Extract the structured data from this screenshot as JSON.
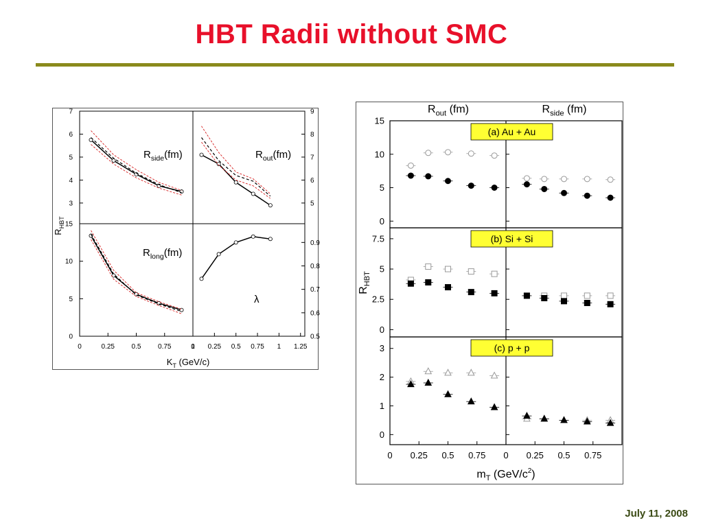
{
  "slide": {
    "title": "HBT Radii without SMC",
    "date": "July 11, 2008"
  },
  "chart_data": [
    {
      "type": "line",
      "name": "left-figure",
      "xlabel": "K_T (GeV/c)",
      "ylabel": "R_HBT",
      "panels": [
        {
          "id": "side",
          "label_main": "R",
          "label_sub": "side",
          "label_unit": "(fm)",
          "xlim": [
            0,
            1
          ],
          "ylim": [
            2.1,
            7
          ],
          "yticks": [
            3,
            4,
            5,
            6,
            7
          ],
          "series": [
            {
              "style": "solid",
              "x": [
                0.1,
                0.3,
                0.5,
                0.7,
                0.9
              ],
              "y": [
                5.75,
                4.85,
                4.25,
                3.75,
                3.5
              ]
            },
            {
              "style": "dashed",
              "x": [
                0.1,
                0.3,
                0.5,
                0.7,
                0.9
              ],
              "y": [
                5.85,
                4.95,
                4.3,
                3.8,
                3.45
              ]
            },
            {
              "style": "band-upper",
              "x": [
                0.1,
                0.3,
                0.5,
                0.7,
                0.9
              ],
              "y": [
                6.15,
                5.1,
                4.45,
                3.9,
                3.55
              ]
            },
            {
              "style": "band-lower",
              "x": [
                0.1,
                0.3,
                0.5,
                0.7,
                0.9
              ],
              "y": [
                5.55,
                4.7,
                4.1,
                3.65,
                3.35
              ]
            }
          ]
        },
        {
          "id": "out",
          "label_main": "R",
          "label_sub": "out",
          "label_unit": "(fm)",
          "xlim": [
            0,
            1.3
          ],
          "ylim": [
            4.1,
            9
          ],
          "yticks": [
            5,
            6,
            7,
            8,
            9
          ],
          "series": [
            {
              "style": "solid",
              "x": [
                0.1,
                0.3,
                0.5,
                0.7,
                0.9
              ],
              "y": [
                7.1,
                6.7,
                5.9,
                5.4,
                4.9
              ]
            },
            {
              "style": "dashed",
              "x": [
                0.1,
                0.3,
                0.5,
                0.7,
                0.9
              ],
              "y": [
                7.85,
                6.85,
                6.2,
                5.95,
                5.3
              ]
            },
            {
              "style": "band-upper",
              "x": [
                0.1,
                0.3,
                0.5,
                0.7,
                0.9
              ],
              "y": [
                8.35,
                7.2,
                6.35,
                6.05,
                5.4
              ]
            },
            {
              "style": "band-lower",
              "x": [
                0.1,
                0.3,
                0.5,
                0.7,
                0.9
              ],
              "y": [
                7.65,
                6.65,
                6.0,
                5.75,
                5.2
              ]
            }
          ]
        },
        {
          "id": "long",
          "label_main": "R",
          "label_sub": "long",
          "label_unit": "(fm)",
          "xlim": [
            0,
            1
          ],
          "ylim": [
            0,
            15
          ],
          "yticks": [
            0,
            5,
            10,
            15
          ],
          "xticks": [
            "0",
            "0.25",
            "0.5",
            "0.75",
            "1"
          ],
          "series": [
            {
              "style": "solid",
              "x": [
                0.1,
                0.3,
                0.5,
                0.7,
                0.9
              ],
              "y": [
                13.4,
                8.1,
                5.6,
                4.4,
                3.5
              ]
            },
            {
              "style": "dashed",
              "x": [
                0.1,
                0.3,
                0.5,
                0.7,
                0.9
              ],
              "y": [
                13.6,
                8.3,
                5.5,
                4.3,
                3.3
              ]
            },
            {
              "style": "band-upper",
              "x": [
                0.1,
                0.3,
                0.5,
                0.7,
                0.9
              ],
              "y": [
                14.1,
                8.8,
                5.8,
                4.6,
                3.6
              ]
            },
            {
              "style": "band-lower",
              "x": [
                0.1,
                0.3,
                0.5,
                0.7,
                0.9
              ],
              "y": [
                12.9,
                7.6,
                5.3,
                4.1,
                3.0
              ]
            }
          ]
        },
        {
          "id": "lambda",
          "label_main": "λ",
          "label_sub": "",
          "label_unit": "",
          "xlim": [
            0,
            1.3
          ],
          "ylim": [
            0.5,
            0.98
          ],
          "yticks": [
            0.5,
            0.6,
            0.7,
            0.8,
            0.9
          ],
          "xticks": [
            "0",
            "0.25",
            "0.5",
            "0.75",
            "1",
            "1.25"
          ],
          "series": [
            {
              "style": "solid",
              "x": [
                0.1,
                0.3,
                0.5,
                0.7,
                0.9
              ],
              "y": [
                0.745,
                0.85,
                0.9,
                0.925,
                0.915
              ]
            }
          ]
        }
      ]
    },
    {
      "type": "scatter",
      "name": "right-figure",
      "xlabel_main": "m",
      "xlabel_sub": "T",
      "xlabel_unit": "(GeV/c",
      "xlabel_sup": "2",
      "xlabel_close": ")",
      "ylabel_main": "R",
      "ylabel_sub": "HBT",
      "col_titles": [
        {
          "main": "R",
          "sub": "out",
          "unit": "(fm)"
        },
        {
          "main": "R",
          "sub": "side",
          "unit": "(fm)"
        }
      ],
      "xlim": [
        0,
        1.0
      ],
      "xticks": [
        "0",
        "0.25",
        "0.5",
        "0.75",
        "1"
      ],
      "xticks_right": [
        "0",
        "0.25",
        "0.5",
        "0.75",
        "1"
      ],
      "rows": [
        {
          "label": "(a) Au + Au",
          "marker": "circle",
          "ylim": [
            -1,
            15
          ],
          "yticks": [
            "0",
            "5",
            "10",
            "15"
          ],
          "ytick_values": [
            0,
            5,
            10,
            15
          ],
          "out_open": {
            "x": [
              0.18,
              0.33,
              0.5,
              0.7,
              0.9
            ],
            "y": [
              8.3,
              10.2,
              10.3,
              10.1,
              9.8
            ]
          },
          "out_filled": {
            "x": [
              0.18,
              0.33,
              0.5,
              0.7,
              0.9
            ],
            "y": [
              6.8,
              6.7,
              6.0,
              5.3,
              5.0
            ]
          },
          "side_open": {
            "x": [
              0.18,
              0.33,
              0.5,
              0.7,
              0.9
            ],
            "y": [
              6.4,
              6.3,
              6.3,
              6.3,
              6.2
            ]
          },
          "side_filled": {
            "x": [
              0.18,
              0.33,
              0.5,
              0.7,
              0.9
            ],
            "y": [
              5.5,
              4.8,
              4.2,
              3.8,
              3.5
            ]
          }
        },
        {
          "label": "(b) Si + Si",
          "marker": "square",
          "ylim": [
            -0.6,
            8.4
          ],
          "yticks": [
            "0",
            "2.5",
            "5",
            "7.5"
          ],
          "ytick_values": [
            0,
            2.5,
            5,
            7.5
          ],
          "out_open": {
            "x": [
              0.18,
              0.33,
              0.5,
              0.7,
              0.9
            ],
            "y": [
              4.1,
              5.2,
              5.0,
              4.8,
              4.6
            ]
          },
          "out_filled": {
            "x": [
              0.18,
              0.33,
              0.5,
              0.7,
              0.9
            ],
            "y": [
              3.8,
              3.9,
              3.5,
              3.1,
              3.0
            ]
          },
          "side_open": {
            "x": [
              0.18,
              0.33,
              0.5,
              0.7,
              0.9
            ],
            "y": [
              2.8,
              2.8,
              2.8,
              2.8,
              2.8
            ]
          },
          "side_filled": {
            "x": [
              0.18,
              0.33,
              0.5,
              0.7,
              0.9
            ],
            "y": [
              2.8,
              2.6,
              2.35,
              2.2,
              2.1
            ]
          }
        },
        {
          "label": "(c) p + p",
          "marker": "triangle",
          "ylim": [
            -0.35,
            3.4
          ],
          "yticks": [
            "0",
            "1",
            "2",
            "3"
          ],
          "ytick_values": [
            0,
            1,
            2,
            3
          ],
          "out_open": {
            "x": [
              0.18,
              0.33,
              0.5,
              0.7,
              0.9
            ],
            "y": [
              1.85,
              2.2,
              2.15,
              2.15,
              2.05
            ]
          },
          "out_filled": {
            "x": [
              0.18,
              0.33,
              0.5,
              0.7,
              0.9
            ],
            "y": [
              1.75,
              1.8,
              1.4,
              1.15,
              0.95
            ]
          },
          "side_open": {
            "x": [
              0.18,
              0.33,
              0.5,
              0.7,
              0.9
            ],
            "y": [
              0.55,
              0.55,
              0.5,
              0.5,
              0.5
            ]
          },
          "side_filled": {
            "x": [
              0.18,
              0.33,
              0.5,
              0.7,
              0.9
            ],
            "y": [
              0.65,
              0.55,
              0.5,
              0.45,
              0.4
            ]
          }
        }
      ]
    }
  ],
  "colors": {
    "title": "#e8102a",
    "rule": "#8a8a1c",
    "label_box": "#ffff33",
    "band": "#d62020",
    "open_marker": "#999999"
  }
}
